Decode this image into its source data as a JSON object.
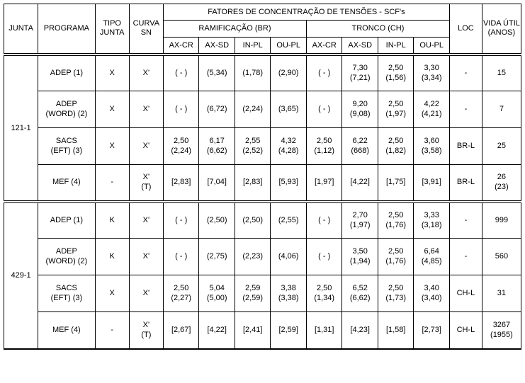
{
  "headers": {
    "junta": "JUNTA",
    "programa": "PROGRAMA",
    "tipoJunta": "TIPO JUNTA",
    "curvaSn": "CURVA SN",
    "fatores": "FATORES DE CONCENTRAÇÃO DE TENSÕES - SCF's",
    "ramificacao": "RAMIFICAÇÃO (BR)",
    "tronco": "TRONCO (CH)",
    "loc": "LOC",
    "vidaUtil": "VIDA ÚTIL (ANOS)",
    "axcr": "AX-CR",
    "axsd": "AX-SD",
    "inpl": "IN-PL",
    "oupl": "OU-PL"
  },
  "groups": [
    {
      "junta": "121-1",
      "rows": [
        {
          "programa": "ADEP (1)",
          "tipo": "X",
          "curva": "X'",
          "br_axcr": "( - )",
          "br_axsd": "(5,34)",
          "br_inpl": "(1,78)",
          "br_oupl": "(2,90)",
          "ch_axcr": "( - )",
          "ch_axsd": "7,30 (7,21)",
          "ch_inpl": "2,50 (1,56)",
          "ch_oupl": "3,30 (3,34)",
          "loc": "-",
          "vida": "15"
        },
        {
          "programa": "ADEP (WORD) (2)",
          "tipo": "X",
          "curva": "X'",
          "br_axcr": "( - )",
          "br_axsd": "(6,72)",
          "br_inpl": "(2,24)",
          "br_oupl": "(3,65)",
          "ch_axcr": "( - )",
          "ch_axsd": "9,20 (9,08)",
          "ch_inpl": "2,50 (1,97)",
          "ch_oupl": "4,22 (4,21)",
          "loc": "-",
          "vida": "7"
        },
        {
          "programa": "SACS (EFT) (3)",
          "tipo": "X",
          "curva": "X'",
          "br_axcr": "2,50 (2,24)",
          "br_axsd": "6,17 (6,62)",
          "br_inpl": "2,55 (2,52)",
          "br_oupl": "4,32 (4,28)",
          "ch_axcr": "2,50 (1,12)",
          "ch_axsd": "6,22 (668)",
          "ch_inpl": "2,50 (1,82)",
          "ch_oupl": "3,60 (3,58)",
          "loc": "BR-L",
          "vida": "25"
        },
        {
          "programa": "MEF (4)",
          "tipo": "-",
          "curva": "X' (T)",
          "br_axcr": "[2,83]",
          "br_axsd": "[7,04]",
          "br_inpl": "[2,83]",
          "br_oupl": "[5,93]",
          "ch_axcr": "[1,97]",
          "ch_axsd": "[4,22]",
          "ch_inpl": "[1,75]",
          "ch_oupl": "[3,91]",
          "loc": "BR-L",
          "vida": "26 (23)"
        }
      ]
    },
    {
      "junta": "429-1",
      "rows": [
        {
          "programa": "ADEP (1)",
          "tipo": "K",
          "curva": "X'",
          "br_axcr": "( - )",
          "br_axsd": "(2,50)",
          "br_inpl": "(2,50)",
          "br_oupl": "(2,55)",
          "ch_axcr": "( - )",
          "ch_axsd": "2,70 (1,97)",
          "ch_inpl": "2,50 (1,76)",
          "ch_oupl": "3,33 (3,18)",
          "loc": "-",
          "vida": "999"
        },
        {
          "programa": "ADEP (WORD) (2)",
          "tipo": "K",
          "curva": "X'",
          "br_axcr": "( - )",
          "br_axsd": "(2,75)",
          "br_inpl": "(2,23)",
          "br_oupl": "(4,06)",
          "ch_axcr": "( - )",
          "ch_axsd": "3,50 (1,94)",
          "ch_inpl": "2,50 (1,76)",
          "ch_oupl": "6,64 (4,85)",
          "loc": "-",
          "vida": "560"
        },
        {
          "programa": "SACS (EFT) (3)",
          "tipo": "X",
          "curva": "X'",
          "br_axcr": "2,50 (2,27)",
          "br_axsd": "5,04 (5,00)",
          "br_inpl": "2,59 (2,59)",
          "br_oupl": "3,38 (3,38)",
          "ch_axcr": "2,50 (1,34)",
          "ch_axsd": "6,52 (6,62)",
          "ch_inpl": "2,50 (1,73)",
          "ch_oupl": "3,40 (3,40)",
          "loc": "CH-L",
          "vida": "31"
        },
        {
          "programa": "MEF (4)",
          "tipo": "-",
          "curva": "X' (T)",
          "br_axcr": "[2,67]",
          "br_axsd": "[4,22]",
          "br_inpl": "[2,41]",
          "br_oupl": "[2,59]",
          "ch_axcr": "[1,31]",
          "ch_axsd": "[4,23]",
          "ch_inpl": "[1,58]",
          "ch_oupl": "[2,73]",
          "loc": "CH-L",
          "vida": "3267 (1955)"
        }
      ]
    }
  ]
}
